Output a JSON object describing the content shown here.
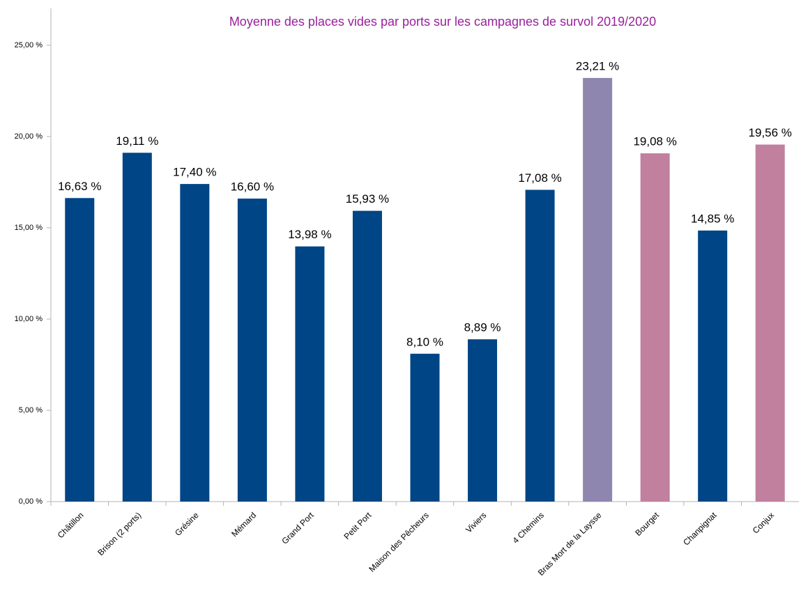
{
  "chart_data": {
    "type": "bar",
    "title": "Moyenne des places vides par ports sur les campagnes de survol 2019/2020",
    "title_color": "#9a1f9c",
    "categories": [
      "Châtillon",
      "Brison (2 ports)",
      "Grésine",
      "Mémard",
      "Grand Port",
      "Petit Port",
      "Maison des Pêcheurs",
      "Viviers",
      "4 Chemins",
      "Bras Mort de la Laysse",
      "Bourget",
      "Chanpignat",
      "Conjux"
    ],
    "values": [
      16.63,
      19.11,
      17.4,
      16.6,
      13.98,
      15.93,
      8.1,
      8.89,
      17.08,
      23.21,
      19.08,
      14.85,
      19.56
    ],
    "value_labels": [
      "16,63 %",
      "19,11 %",
      "17,40 %",
      "16,60 %",
      "13,98 %",
      "15,93 %",
      "8,10 %",
      "8,89 %",
      "17,08 %",
      "23,21 %",
      "19,08 %",
      "14,85 %",
      "19,56 %"
    ],
    "colors": [
      "#004586",
      "#004586",
      "#004586",
      "#004586",
      "#004586",
      "#004586",
      "#004586",
      "#004586",
      "#004586",
      "#8e86ae",
      "#c0809e",
      "#004586",
      "#c0809e"
    ],
    "ylim": [
      0,
      25
    ],
    "yticks": [
      {
        "value": 0,
        "label": "0,00 %"
      },
      {
        "value": 5,
        "label": "5,00 %"
      },
      {
        "value": 10,
        "label": "10,00 %"
      },
      {
        "value": 15,
        "label": "15,00 %"
      },
      {
        "value": 20,
        "label": "20,00 %"
      },
      {
        "value": 25,
        "label": "25,00 %"
      }
    ],
    "grid": false
  }
}
